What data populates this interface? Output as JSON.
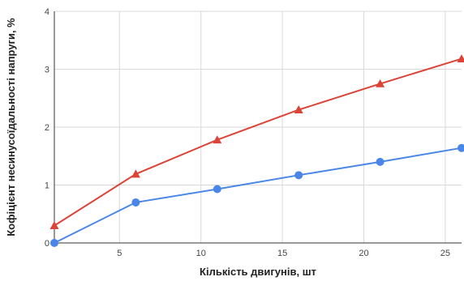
{
  "chart_data": {
    "type": "line",
    "xlabel": "Кількість двигунів, шт",
    "ylabel": "Кофіцієнт несинусоїдальності напруги, %",
    "xlim": [
      1,
      26
    ],
    "ylim": [
      0,
      4
    ],
    "xticks": [
      5,
      10,
      15,
      20,
      25
    ],
    "yticks": [
      0,
      1,
      2,
      3,
      4
    ],
    "grid": true,
    "series": [
      {
        "marker": "triangle",
        "color": "#db4437",
        "x": [
          1,
          6,
          11,
          16,
          21,
          26
        ],
        "y": [
          0.3,
          1.19,
          1.78,
          2.3,
          2.75,
          3.18
        ]
      },
      {
        "marker": "circle",
        "color": "#4a86e8",
        "x": [
          1,
          6,
          11,
          16,
          21,
          26
        ],
        "y": [
          0.0,
          0.7,
          0.93,
          1.17,
          1.4,
          1.64
        ]
      }
    ]
  }
}
